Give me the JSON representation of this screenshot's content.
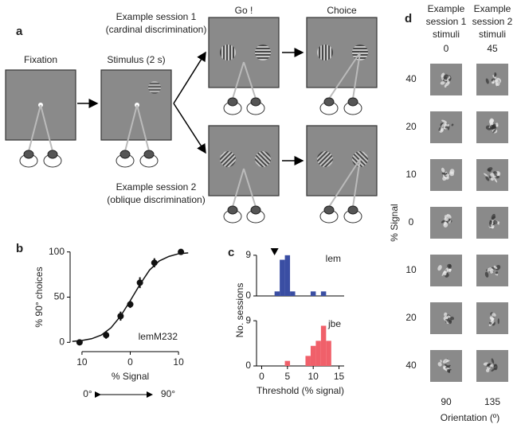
{
  "panel_a": {
    "label": "a",
    "fixation": "Fixation",
    "stimulus": "Stimulus (2 s)",
    "go": "Go !",
    "choice": "Choice",
    "session1": [
      "Example session 1",
      "(cardinal discrimination)"
    ],
    "session2": [
      "Example session 2",
      "(oblique discrimination)"
    ]
  },
  "chart_data": [
    {
      "type": "scatter",
      "panel_label": "b",
      "xlabel": "% Signal",
      "ylabel": "% 90° choices",
      "annotation": "lemM232",
      "direction_left": "0°",
      "direction_right": "90°",
      "x": [
        -10.5,
        -5,
        -2,
        0,
        2,
        5,
        10.5
      ],
      "values": [
        0,
        8,
        29,
        42,
        66,
        88,
        100
      ],
      "errors": [
        1,
        4,
        5,
        4,
        6,
        5,
        2
      ],
      "fit_x": [
        -12,
        -10,
        -8,
        -6,
        -4,
        -2,
        0,
        2,
        4,
        6,
        8,
        10,
        12
      ],
      "fit_values": [
        1,
        2,
        4,
        8,
        16,
        29,
        46,
        64,
        80,
        90,
        95,
        98,
        99
      ],
      "color": "#111111",
      "xlim": [
        -11.8,
        11.8
      ],
      "ylim": [
        -5,
        105
      ],
      "xticks": [
        {
          "value": -10,
          "label": "10"
        },
        0,
        {
          "value": 10,
          "label": "10"
        }
      ],
      "yticks": [
        0,
        50,
        100
      ]
    },
    {
      "type": "histogram",
      "panel_label": "c",
      "ylabel": "No. sessions",
      "annotation": "lem",
      "color": "#3a4ea3",
      "bins": [
        2.5,
        3.5,
        4.5,
        5.5,
        6.5,
        7.5,
        8.5,
        9.5,
        10.5,
        11.5,
        12.5
      ],
      "counts": [
        1,
        8,
        9,
        1,
        0,
        0,
        0,
        1,
        0,
        1
      ],
      "marker_x": 2.5,
      "xlim": [
        -1,
        16
      ],
      "ylim": [
        0,
        9.5
      ],
      "yticks": [
        0,
        9
      ]
    },
    {
      "type": "histogram",
      "xlabel": "Threshold (% signal)",
      "annotation": "jbe",
      "color": "#f0606a",
      "bins": [
        4.5,
        5.5,
        6.5,
        7.5,
        8.5,
        9.5,
        10.5,
        11.5,
        12.5,
        13.5
      ],
      "counts": [
        1,
        0,
        0,
        0,
        2,
        4,
        5,
        8,
        5
      ],
      "xlim": [
        -1,
        16
      ],
      "ylim": [
        0,
        9.5
      ],
      "xticks": [
        0,
        5,
        10,
        15
      ],
      "yticks": [
        0,
        9
      ]
    }
  ],
  "panel_d": {
    "label": "d",
    "col1": [
      "Example",
      "session 1",
      "stimuli"
    ],
    "col2": [
      "Example",
      "session 2",
      "stimuli"
    ],
    "top": [
      "0",
      "45"
    ],
    "rows": [
      "40",
      "20",
      "10",
      "0",
      "10",
      "20",
      "40"
    ],
    "ylabel": "% Signal",
    "bottom": [
      "90",
      "135"
    ],
    "xlabel": "Orientation (º)"
  }
}
